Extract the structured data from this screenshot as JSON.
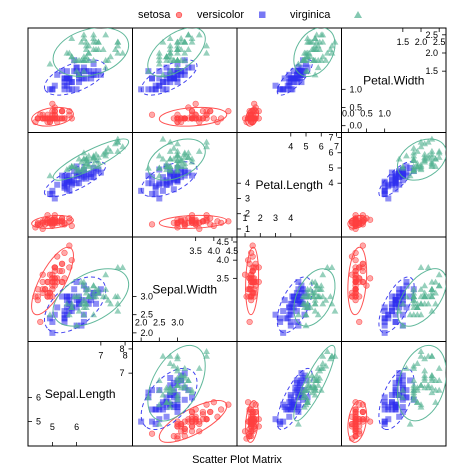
{
  "chart_data": {
    "type": "scatter",
    "subtype": "scatterplot-matrix",
    "xlabel": "Scatter Plot Matrix",
    "variables": [
      "Sepal.Length",
      "Sepal.Width",
      "Petal.Length",
      "Petal.Width"
    ],
    "ranges": {
      "Sepal.Length": [
        4.2,
        8.1
      ],
      "Sepal.Width": [
        1.9,
        4.5
      ],
      "Petal.Length": [
        0.8,
        7.0
      ],
      "Petal.Width": [
        -0.05,
        2.55
      ]
    },
    "tick_labels": {
      "Sepal.Length": {
        "low": [
          "5",
          "6"
        ],
        "high": [
          "7",
          "8"
        ]
      },
      "Sepal.Width": {
        "low": [
          "2.0",
          "2.5",
          "3.0"
        ],
        "high": [
          "3.5",
          "4.0",
          "4.5"
        ]
      },
      "Petal.Length": {
        "low": [
          "1",
          "2",
          "3",
          "4"
        ],
        "high": [
          "4",
          "5",
          "6",
          "7"
        ]
      },
      "Petal.Width": {
        "low": [
          "0.0",
          "0.5",
          "1.0"
        ],
        "high": [
          "1.5",
          "2.0",
          "2.5"
        ]
      }
    },
    "legend": {
      "placement": "top",
      "entries": [
        "setosa",
        "versicolor",
        "virginica"
      ]
    },
    "series": [
      {
        "name": "setosa",
        "color": "#ff4040",
        "marker": "circle",
        "points": [
          [
            5.1,
            3.5,
            1.4,
            0.2
          ],
          [
            4.9,
            3.0,
            1.4,
            0.2
          ],
          [
            4.7,
            3.2,
            1.3,
            0.2
          ],
          [
            4.6,
            3.1,
            1.5,
            0.2
          ],
          [
            5.0,
            3.6,
            1.4,
            0.2
          ],
          [
            5.4,
            3.9,
            1.7,
            0.4
          ],
          [
            4.6,
            3.4,
            1.4,
            0.3
          ],
          [
            5.0,
            3.4,
            1.5,
            0.2
          ],
          [
            4.4,
            2.9,
            1.4,
            0.2
          ],
          [
            4.9,
            3.1,
            1.5,
            0.1
          ],
          [
            5.4,
            3.7,
            1.5,
            0.2
          ],
          [
            4.8,
            3.4,
            1.6,
            0.2
          ],
          [
            4.8,
            3.0,
            1.4,
            0.1
          ],
          [
            4.3,
            3.0,
            1.1,
            0.1
          ],
          [
            5.8,
            4.0,
            1.2,
            0.2
          ],
          [
            5.7,
            4.4,
            1.5,
            0.4
          ],
          [
            5.4,
            3.9,
            1.3,
            0.4
          ],
          [
            5.1,
            3.5,
            1.4,
            0.3
          ],
          [
            5.7,
            3.8,
            1.7,
            0.3
          ],
          [
            5.1,
            3.8,
            1.5,
            0.3
          ],
          [
            5.4,
            3.4,
            1.7,
            0.2
          ],
          [
            5.1,
            3.7,
            1.5,
            0.4
          ],
          [
            4.6,
            3.6,
            1.0,
            0.2
          ],
          [
            5.1,
            3.3,
            1.7,
            0.5
          ],
          [
            4.8,
            3.4,
            1.9,
            0.2
          ],
          [
            5.0,
            3.0,
            1.6,
            0.2
          ],
          [
            5.0,
            3.4,
            1.6,
            0.4
          ],
          [
            5.2,
            3.5,
            1.5,
            0.2
          ],
          [
            5.2,
            3.4,
            1.4,
            0.2
          ],
          [
            4.7,
            3.2,
            1.6,
            0.2
          ],
          [
            4.8,
            3.1,
            1.6,
            0.2
          ],
          [
            5.4,
            3.4,
            1.5,
            0.4
          ],
          [
            5.2,
            4.1,
            1.5,
            0.1
          ],
          [
            5.5,
            4.2,
            1.4,
            0.2
          ],
          [
            4.9,
            3.1,
            1.5,
            0.2
          ],
          [
            5.0,
            3.2,
            1.2,
            0.2
          ],
          [
            5.5,
            3.5,
            1.3,
            0.2
          ],
          [
            4.9,
            3.6,
            1.4,
            0.1
          ],
          [
            4.4,
            3.0,
            1.3,
            0.2
          ],
          [
            5.1,
            3.4,
            1.5,
            0.2
          ],
          [
            5.0,
            3.5,
            1.3,
            0.3
          ],
          [
            4.5,
            2.3,
            1.3,
            0.3
          ],
          [
            4.4,
            3.2,
            1.3,
            0.2
          ],
          [
            5.0,
            3.5,
            1.6,
            0.6
          ],
          [
            5.1,
            3.8,
            1.9,
            0.4
          ],
          [
            4.8,
            3.0,
            1.4,
            0.3
          ],
          [
            5.1,
            3.8,
            1.6,
            0.2
          ],
          [
            4.6,
            3.2,
            1.4,
            0.2
          ],
          [
            5.3,
            3.7,
            1.5,
            0.2
          ],
          [
            5.0,
            3.3,
            1.4,
            0.2
          ]
        ]
      },
      {
        "name": "versicolor",
        "color": "#3030ee",
        "marker": "square",
        "points": [
          [
            7.0,
            3.2,
            4.7,
            1.4
          ],
          [
            6.4,
            3.2,
            4.5,
            1.5
          ],
          [
            6.9,
            3.1,
            4.9,
            1.5
          ],
          [
            5.5,
            2.3,
            4.0,
            1.3
          ],
          [
            6.5,
            2.8,
            4.6,
            1.5
          ],
          [
            5.7,
            2.8,
            4.5,
            1.3
          ],
          [
            6.3,
            3.3,
            4.7,
            1.6
          ],
          [
            4.9,
            2.4,
            3.3,
            1.0
          ],
          [
            6.6,
            2.9,
            4.6,
            1.3
          ],
          [
            5.2,
            2.7,
            3.9,
            1.4
          ],
          [
            5.0,
            2.0,
            3.5,
            1.0
          ],
          [
            5.9,
            3.0,
            4.2,
            1.5
          ],
          [
            6.0,
            2.2,
            4.0,
            1.0
          ],
          [
            6.1,
            2.9,
            4.7,
            1.4
          ],
          [
            5.6,
            2.9,
            3.6,
            1.3
          ],
          [
            6.7,
            3.1,
            4.4,
            1.4
          ],
          [
            5.6,
            3.0,
            4.5,
            1.5
          ],
          [
            5.8,
            2.7,
            4.1,
            1.0
          ],
          [
            6.2,
            2.2,
            4.5,
            1.5
          ],
          [
            5.6,
            2.5,
            3.9,
            1.1
          ],
          [
            5.9,
            3.2,
            4.8,
            1.8
          ],
          [
            6.1,
            2.8,
            4.0,
            1.3
          ],
          [
            6.3,
            2.5,
            4.9,
            1.5
          ],
          [
            6.1,
            2.8,
            4.7,
            1.2
          ],
          [
            6.4,
            2.9,
            4.3,
            1.3
          ],
          [
            6.6,
            3.0,
            4.4,
            1.4
          ],
          [
            6.8,
            2.8,
            4.8,
            1.4
          ],
          [
            6.7,
            3.0,
            5.0,
            1.7
          ],
          [
            6.0,
            2.9,
            4.5,
            1.5
          ],
          [
            5.7,
            2.6,
            3.5,
            1.0
          ],
          [
            5.5,
            2.4,
            3.8,
            1.1
          ],
          [
            5.5,
            2.4,
            3.7,
            1.0
          ],
          [
            5.8,
            2.7,
            3.9,
            1.2
          ],
          [
            6.0,
            2.7,
            5.1,
            1.6
          ],
          [
            5.4,
            3.0,
            4.5,
            1.5
          ],
          [
            6.0,
            3.4,
            4.5,
            1.6
          ],
          [
            6.7,
            3.1,
            4.7,
            1.5
          ],
          [
            6.3,
            2.3,
            4.4,
            1.3
          ],
          [
            5.6,
            3.0,
            4.1,
            1.3
          ],
          [
            5.5,
            2.5,
            4.0,
            1.3
          ],
          [
            5.5,
            2.6,
            4.4,
            1.2
          ],
          [
            6.1,
            3.0,
            4.6,
            1.4
          ],
          [
            5.8,
            2.6,
            4.0,
            1.2
          ],
          [
            5.0,
            2.3,
            3.3,
            1.0
          ],
          [
            5.6,
            2.7,
            4.2,
            1.3
          ],
          [
            5.7,
            3.0,
            4.2,
            1.2
          ],
          [
            5.7,
            2.9,
            4.2,
            1.3
          ],
          [
            6.2,
            2.9,
            4.3,
            1.3
          ],
          [
            5.1,
            2.5,
            3.0,
            1.1
          ],
          [
            5.7,
            2.8,
            4.1,
            1.3
          ]
        ]
      },
      {
        "name": "virginica",
        "color": "#50b090",
        "marker": "triangle",
        "points": [
          [
            6.3,
            3.3,
            6.0,
            2.5
          ],
          [
            5.8,
            2.7,
            5.1,
            1.9
          ],
          [
            7.1,
            3.0,
            5.9,
            2.1
          ],
          [
            6.3,
            2.9,
            5.6,
            1.8
          ],
          [
            6.5,
            3.0,
            5.8,
            2.2
          ],
          [
            7.6,
            3.0,
            6.6,
            2.1
          ],
          [
            4.9,
            2.5,
            4.5,
            1.7
          ],
          [
            7.3,
            2.9,
            6.3,
            1.8
          ],
          [
            6.7,
            2.5,
            5.8,
            1.8
          ],
          [
            7.2,
            3.6,
            6.1,
            2.5
          ],
          [
            6.5,
            3.2,
            5.1,
            2.0
          ],
          [
            6.4,
            2.7,
            5.3,
            1.9
          ],
          [
            6.8,
            3.0,
            5.5,
            2.1
          ],
          [
            5.7,
            2.5,
            5.0,
            2.0
          ],
          [
            5.8,
            2.8,
            5.1,
            2.4
          ],
          [
            6.4,
            3.2,
            5.3,
            2.3
          ],
          [
            6.5,
            3.0,
            5.5,
            1.8
          ],
          [
            7.7,
            3.8,
            6.7,
            2.2
          ],
          [
            7.7,
            2.6,
            6.9,
            2.3
          ],
          [
            6.0,
            2.2,
            5.0,
            1.5
          ],
          [
            6.9,
            3.2,
            5.7,
            2.3
          ],
          [
            5.6,
            2.8,
            4.9,
            2.0
          ],
          [
            7.7,
            2.8,
            6.7,
            2.0
          ],
          [
            6.3,
            2.7,
            4.9,
            1.8
          ],
          [
            6.7,
            3.3,
            5.7,
            2.1
          ],
          [
            7.2,
            3.2,
            6.0,
            1.8
          ],
          [
            6.2,
            2.8,
            4.8,
            1.8
          ],
          [
            6.1,
            3.0,
            4.9,
            1.8
          ],
          [
            6.4,
            2.8,
            5.6,
            2.1
          ],
          [
            7.2,
            3.0,
            5.8,
            1.6
          ],
          [
            7.4,
            2.8,
            6.1,
            1.9
          ],
          [
            7.9,
            3.8,
            6.4,
            2.0
          ],
          [
            6.4,
            2.8,
            5.6,
            2.2
          ],
          [
            6.3,
            2.8,
            5.1,
            1.5
          ],
          [
            6.1,
            2.6,
            5.6,
            1.4
          ],
          [
            7.7,
            3.0,
            6.1,
            2.3
          ],
          [
            6.3,
            3.4,
            5.6,
            2.4
          ],
          [
            6.4,
            3.1,
            5.5,
            1.8
          ],
          [
            6.0,
            3.0,
            4.8,
            1.8
          ],
          [
            6.9,
            3.1,
            5.4,
            2.1
          ],
          [
            6.7,
            3.1,
            5.6,
            2.4
          ],
          [
            6.9,
            3.1,
            5.1,
            2.3
          ],
          [
            5.8,
            2.7,
            5.1,
            1.9
          ],
          [
            6.8,
            3.2,
            5.9,
            2.3
          ],
          [
            6.7,
            3.3,
            5.7,
            2.5
          ],
          [
            6.7,
            3.0,
            5.2,
            2.3
          ],
          [
            6.3,
            2.5,
            5.0,
            1.9
          ],
          [
            6.5,
            3.0,
            5.2,
            2.0
          ],
          [
            6.2,
            3.4,
            5.4,
            2.3
          ],
          [
            5.9,
            3.0,
            5.1,
            1.8
          ]
        ]
      }
    ],
    "ellipses": true,
    "grid": false
  }
}
